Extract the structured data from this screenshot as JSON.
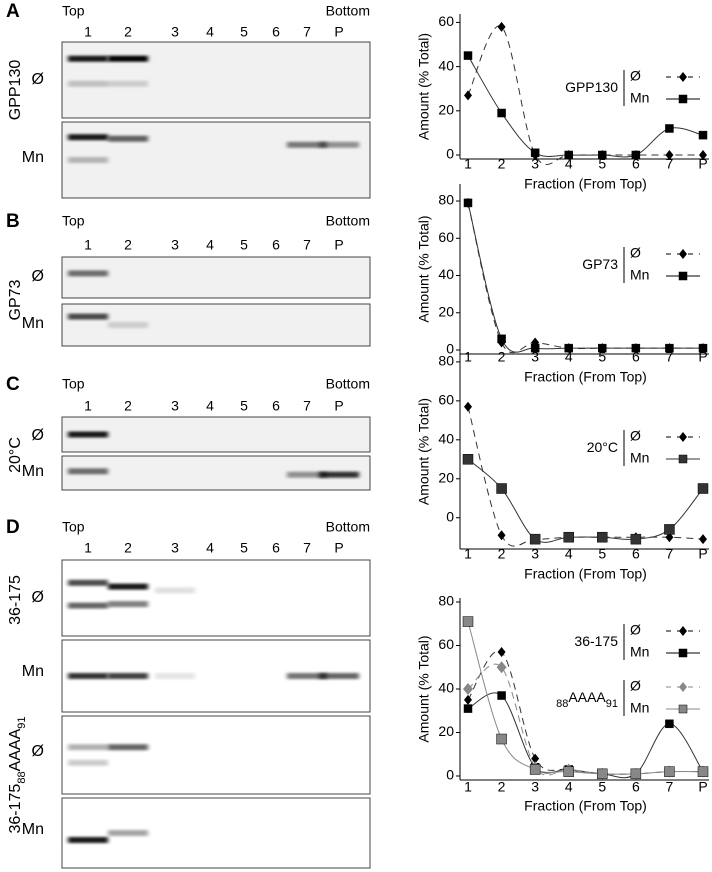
{
  "gels": [
    {
      "letter": "A",
      "top": "Top",
      "bottom": "Bottom",
      "lanes": [
        "1",
        "2",
        "3",
        "4",
        "5",
        "6",
        "7",
        "P"
      ],
      "groups": [
        {
          "parts": [
            {
              "text": "GPP130"
            }
          ],
          "rows": [
            "Ø",
            "Mn"
          ]
        }
      ]
    },
    {
      "letter": "B",
      "top": "Top",
      "bottom": "Bottom",
      "lanes": [
        "1",
        "2",
        "3",
        "4",
        "5",
        "6",
        "7",
        "P"
      ],
      "groups": [
        {
          "parts": [
            {
              "text": "GP73"
            }
          ],
          "rows": [
            "Ø",
            "Mn"
          ]
        }
      ]
    },
    {
      "letter": "C",
      "top": "Top",
      "bottom": "Bottom",
      "lanes": [
        "1",
        "2",
        "3",
        "4",
        "5",
        "6",
        "7",
        "P"
      ],
      "groups": [
        {
          "parts": [
            {
              "text": "20°C"
            }
          ],
          "rows": [
            "Ø",
            "Mn"
          ]
        }
      ]
    },
    {
      "letter": "D",
      "top": "Top",
      "bottom": "Bottom",
      "lanes": [
        "1",
        "2",
        "3",
        "4",
        "5",
        "6",
        "7",
        "P"
      ],
      "groups": [
        {
          "parts": [
            {
              "text": "36-175"
            }
          ],
          "rows": [
            "Ø",
            "Mn"
          ]
        },
        {
          "parts": [
            {
              "text": "36-175"
            },
            {
              "text": "88",
              "sub": true
            },
            {
              "text": "AAAA"
            },
            {
              "text": "91",
              "sub": true
            }
          ],
          "rows": [
            "Ø",
            "Mn"
          ]
        }
      ]
    }
  ],
  "chart_data": [
    {
      "type": "line",
      "x_label": "Fraction (From Top)",
      "y_label": "Amount (% Total)",
      "categories": [
        "1",
        "2",
        "3",
        "4",
        "5",
        "6",
        "7",
        "P"
      ],
      "ylim": [
        0,
        62
      ],
      "yticks": [
        0,
        20,
        40,
        60
      ],
      "series_groups": [
        {
          "label": [
            {
              "text": "GPP130"
            }
          ],
          "series": [
            {
              "name": "Ø",
              "color": "#000000",
              "marker": "diamond",
              "dash": true,
              "values": [
                27,
                58,
                0,
                0,
                0,
                0,
                0,
                0
              ]
            },
            {
              "name": "Mn",
              "color": "#000000",
              "marker": "square",
              "dash": false,
              "values": [
                45,
                19,
                1,
                0,
                0,
                0,
                12,
                9
              ]
            }
          ]
        }
      ]
    },
    {
      "type": "line",
      "x_label": "Fraction (From Top)",
      "y_label": "Amount (% Total)",
      "categories": [
        "1",
        "2",
        "3",
        "4",
        "5",
        "6",
        "7",
        "P"
      ],
      "ylim": [
        0,
        87
      ],
      "yticks": [
        0,
        20,
        40,
        60,
        80
      ],
      "series_groups": [
        {
          "label": [
            {
              "text": "GP73"
            }
          ],
          "series": [
            {
              "name": "Ø",
              "color": "#000000",
              "marker": "diamond",
              "dash": true,
              "values": [
                79,
                4,
                4,
                1,
                1,
                1,
                1,
                1
              ]
            },
            {
              "name": "Mn",
              "color": "#000000",
              "marker": "square",
              "dash": false,
              "values": [
                79,
                6,
                1,
                1,
                1,
                1,
                1,
                1
              ]
            }
          ]
        }
      ]
    },
    {
      "type": "line",
      "x_label": "Fraction (From Top)",
      "y_label": "Amount (% Total)",
      "categories": [
        "1",
        "2",
        "3",
        "4",
        "5",
        "6",
        "7",
        "P"
      ],
      "ylim": [
        -14,
        82
      ],
      "yticks": [
        0,
        20,
        40,
        60,
        80
      ],
      "series_groups": [
        {
          "label": [
            {
              "text": "20°C"
            }
          ],
          "series": [
            {
              "name": "Ø",
              "color": "#000000",
              "marker": "diamond",
              "dash": true,
              "values": [
                57,
                -9,
                -11,
                -10,
                -10,
                -10,
                -10,
                -11
              ]
            },
            {
              "name": "Mn",
              "color": "#333333",
              "marker": "square",
              "dash": false,
              "values": [
                30,
                15,
                -11,
                -10,
                -10,
                -11,
                -6,
                15
              ]
            }
          ]
        }
      ]
    },
    {
      "type": "line",
      "x_label": "Fraction (From Top)",
      "y_label": "Amount (% Total)",
      "categories": [
        "1",
        "2",
        "3",
        "4",
        "5",
        "6",
        "7",
        "P"
      ],
      "ylim": [
        0,
        80
      ],
      "yticks": [
        0,
        20,
        40,
        60,
        80
      ],
      "series_groups": [
        {
          "label": [
            {
              "text": "36-175"
            }
          ],
          "series": [
            {
              "name": "Ø",
              "color": "#000000",
              "marker": "diamond",
              "dash": true,
              "values": [
                35,
                57,
                8,
                3,
                1,
                1,
                2,
                2
              ]
            },
            {
              "name": "Mn",
              "color": "#000000",
              "marker": "square",
              "dash": false,
              "values": [
                31,
                37,
                4,
                3,
                1,
                1,
                24,
                2
              ]
            }
          ]
        },
        {
          "label": [
            {
              "text": "88",
              "sub": true
            },
            {
              "text": "AAAA"
            },
            {
              "text": "91",
              "sub": true
            }
          ],
          "series": [
            {
              "name": "Ø",
              "color": "#888888",
              "marker": "diamond",
              "dash": true,
              "values": [
                40,
                50,
                4,
                3,
                1,
                1,
                2,
                2
              ]
            },
            {
              "name": "Mn",
              "color": "#888888",
              "marker": "square",
              "dash": false,
              "values": [
                71,
                17,
                3,
                2,
                1,
                1,
                2,
                2
              ]
            }
          ]
        }
      ]
    }
  ]
}
